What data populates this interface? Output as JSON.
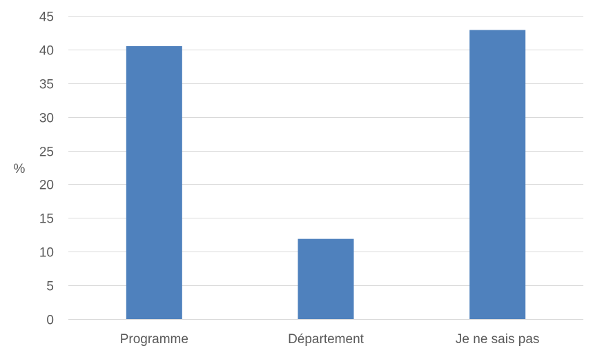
{
  "chart_data": {
    "type": "bar",
    "title": "",
    "xlabel": "",
    "ylabel": "%",
    "ylim": [
      0,
      45
    ],
    "ytick_step": 5,
    "grid": true,
    "legend": "none",
    "categories": [
      "Programme",
      "Département",
      "Je ne sais pas"
    ],
    "values": [
      40.5,
      11.9,
      42.9
    ],
    "colors": {
      "bar": "#4f81bd",
      "grid": "#d9d9d9",
      "text": "#595959"
    }
  }
}
